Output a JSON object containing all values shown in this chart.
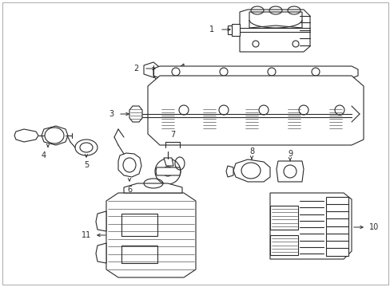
{
  "bg_color": "#ffffff",
  "line_color": "#2a2a2a",
  "label_color": "#000000",
  "figsize": [
    4.89,
    3.6
  ],
  "dpi": 100,
  "border_color": "#888888"
}
